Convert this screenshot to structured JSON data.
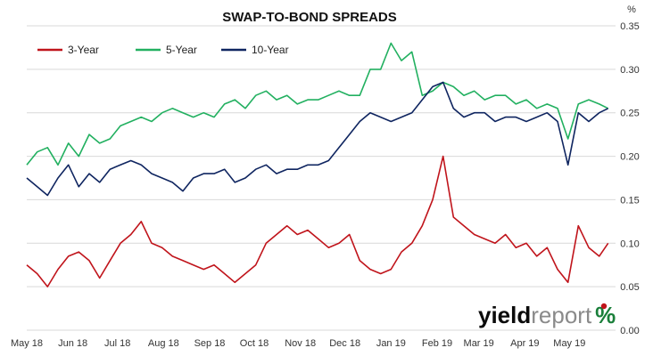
{
  "chart_data": {
    "type": "line",
    "title": "SWAP-TO-BOND SPREADS",
    "ylabel_unit": "%",
    "xlabel": "",
    "ylim": [
      0,
      0.35
    ],
    "y_ticks": [
      "0.00",
      "0.05",
      "0.10",
      "0.15",
      "0.20",
      "0.25",
      "0.30",
      "0.35"
    ],
    "x_ticks": [
      "May 18",
      "Jun 18",
      "Jul 18",
      "Aug 18",
      "Sep 18",
      "Oct 18",
      "Nov 18",
      "Dec 18",
      "Jan 19",
      "Feb 19",
      "Mar 19",
      "Apr 19",
      "May 19"
    ],
    "x_range": [
      "2018-05-01",
      "2019-06-01"
    ],
    "grid": "horizontal",
    "legend_position": "top-left",
    "series": [
      {
        "name": "3-Year",
        "color": "#c0141b",
        "x": [
          "2018-05-01",
          "2018-05-08",
          "2018-05-15",
          "2018-05-22",
          "2018-05-29",
          "2018-06-05",
          "2018-06-12",
          "2018-06-19",
          "2018-06-26",
          "2018-07-03",
          "2018-07-10",
          "2018-07-17",
          "2018-07-24",
          "2018-07-31",
          "2018-08-07",
          "2018-08-14",
          "2018-08-21",
          "2018-08-28",
          "2018-09-04",
          "2018-09-11",
          "2018-09-18",
          "2018-09-25",
          "2018-10-02",
          "2018-10-09",
          "2018-10-16",
          "2018-10-23",
          "2018-10-30",
          "2018-11-06",
          "2018-11-13",
          "2018-11-20",
          "2018-11-27",
          "2018-12-04",
          "2018-12-11",
          "2018-12-18",
          "2018-12-25",
          "2019-01-01",
          "2019-01-08",
          "2019-01-15",
          "2019-01-22",
          "2019-01-29",
          "2019-02-05",
          "2019-02-12",
          "2019-02-19",
          "2019-02-26",
          "2019-03-05",
          "2019-03-12",
          "2019-03-19",
          "2019-03-26",
          "2019-04-02",
          "2019-04-09",
          "2019-04-16",
          "2019-04-23",
          "2019-04-30",
          "2019-05-07",
          "2019-05-14",
          "2019-05-21",
          "2019-05-27"
        ],
        "values": [
          0.075,
          0.065,
          0.05,
          0.07,
          0.085,
          0.09,
          0.08,
          0.06,
          0.08,
          0.1,
          0.11,
          0.125,
          0.1,
          0.095,
          0.085,
          0.08,
          0.075,
          0.07,
          0.075,
          0.065,
          0.055,
          0.065,
          0.075,
          0.1,
          0.11,
          0.12,
          0.11,
          0.115,
          0.105,
          0.095,
          0.1,
          0.11,
          0.08,
          0.07,
          0.065,
          0.07,
          0.09,
          0.1,
          0.12,
          0.15,
          0.2,
          0.13,
          0.12,
          0.11,
          0.105,
          0.1,
          0.11,
          0.095,
          0.1,
          0.085,
          0.095,
          0.07,
          0.055,
          0.12,
          0.095,
          0.085,
          0.1
        ]
      },
      {
        "name": "5-Year",
        "color": "#22b060",
        "x": [
          "2018-05-01",
          "2018-05-08",
          "2018-05-15",
          "2018-05-22",
          "2018-05-29",
          "2018-06-05",
          "2018-06-12",
          "2018-06-19",
          "2018-06-26",
          "2018-07-03",
          "2018-07-10",
          "2018-07-17",
          "2018-07-24",
          "2018-07-31",
          "2018-08-07",
          "2018-08-14",
          "2018-08-21",
          "2018-08-28",
          "2018-09-04",
          "2018-09-11",
          "2018-09-18",
          "2018-09-25",
          "2018-10-02",
          "2018-10-09",
          "2018-10-16",
          "2018-10-23",
          "2018-10-30",
          "2018-11-06",
          "2018-11-13",
          "2018-11-20",
          "2018-11-27",
          "2018-12-04",
          "2018-12-11",
          "2018-12-18",
          "2018-12-25",
          "2019-01-01",
          "2019-01-08",
          "2019-01-15",
          "2019-01-22",
          "2019-01-29",
          "2019-02-05",
          "2019-02-12",
          "2019-02-19",
          "2019-02-26",
          "2019-03-05",
          "2019-03-12",
          "2019-03-19",
          "2019-03-26",
          "2019-04-02",
          "2019-04-09",
          "2019-04-16",
          "2019-04-23",
          "2019-04-30",
          "2019-05-07",
          "2019-05-14",
          "2019-05-21",
          "2019-05-27"
        ],
        "values": [
          0.19,
          0.205,
          0.21,
          0.19,
          0.215,
          0.2,
          0.225,
          0.215,
          0.22,
          0.235,
          0.24,
          0.245,
          0.24,
          0.25,
          0.255,
          0.25,
          0.245,
          0.25,
          0.245,
          0.26,
          0.265,
          0.255,
          0.27,
          0.275,
          0.265,
          0.27,
          0.26,
          0.265,
          0.265,
          0.27,
          0.275,
          0.27,
          0.27,
          0.3,
          0.3,
          0.33,
          0.31,
          0.32,
          0.27,
          0.275,
          0.285,
          0.28,
          0.27,
          0.275,
          0.265,
          0.27,
          0.27,
          0.26,
          0.265,
          0.255,
          0.26,
          0.255,
          0.22,
          0.26,
          0.265,
          0.26,
          0.255
        ]
      },
      {
        "name": "10-Year",
        "color": "#0f2560",
        "x": [
          "2018-05-01",
          "2018-05-08",
          "2018-05-15",
          "2018-05-22",
          "2018-05-29",
          "2018-06-05",
          "2018-06-12",
          "2018-06-19",
          "2018-06-26",
          "2018-07-03",
          "2018-07-10",
          "2018-07-17",
          "2018-07-24",
          "2018-07-31",
          "2018-08-07",
          "2018-08-14",
          "2018-08-21",
          "2018-08-28",
          "2018-09-04",
          "2018-09-11",
          "2018-09-18",
          "2018-09-25",
          "2018-10-02",
          "2018-10-09",
          "2018-10-16",
          "2018-10-23",
          "2018-10-30",
          "2018-11-06",
          "2018-11-13",
          "2018-11-20",
          "2018-11-27",
          "2018-12-04",
          "2018-12-11",
          "2018-12-18",
          "2018-12-25",
          "2019-01-01",
          "2019-01-08",
          "2019-01-15",
          "2019-01-22",
          "2019-01-29",
          "2019-02-05",
          "2019-02-12",
          "2019-02-19",
          "2019-02-26",
          "2019-03-05",
          "2019-03-12",
          "2019-03-19",
          "2019-03-26",
          "2019-04-02",
          "2019-04-09",
          "2019-04-16",
          "2019-04-23",
          "2019-04-30",
          "2019-05-07",
          "2019-05-14",
          "2019-05-21",
          "2019-05-27"
        ],
        "values": [
          0.175,
          0.165,
          0.155,
          0.175,
          0.19,
          0.165,
          0.18,
          0.17,
          0.185,
          0.19,
          0.195,
          0.19,
          0.18,
          0.175,
          0.17,
          0.16,
          0.175,
          0.18,
          0.18,
          0.185,
          0.17,
          0.175,
          0.185,
          0.19,
          0.18,
          0.185,
          0.185,
          0.19,
          0.19,
          0.195,
          0.21,
          0.225,
          0.24,
          0.25,
          0.245,
          0.24,
          0.245,
          0.25,
          0.265,
          0.28,
          0.285,
          0.255,
          0.245,
          0.25,
          0.25,
          0.24,
          0.245,
          0.245,
          0.24,
          0.245,
          0.25,
          0.24,
          0.19,
          0.25,
          0.24,
          0.25,
          0.255
        ]
      }
    ]
  },
  "logo": {
    "part1": "yield",
    "part2": "report",
    "part3": "%",
    "color_dark": "#0b0b0b",
    "color_grey": "#8a8a8a",
    "color_green": "#1a7f3a",
    "color_red": "#c0141b"
  }
}
